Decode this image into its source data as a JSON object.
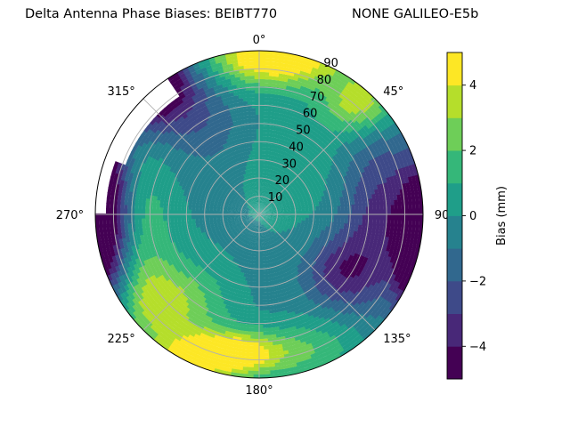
{
  "chart_data": {
    "type": "heatmap",
    "projection": "polar",
    "title_left": "Delta Antenna Phase Biases: BEIBT770",
    "title_right": "NONE GALILEO-E5b",
    "angular_axis": {
      "zero_location": "top",
      "direction": "clockwise",
      "tick_labels": [
        "0°",
        "45°",
        "90",
        "135°",
        "180°",
        "225°",
        "270°",
        "315°"
      ],
      "tick_values": [
        0,
        45,
        90,
        135,
        180,
        225,
        270,
        315
      ]
    },
    "radial_axis": {
      "quantity": "zenith angle",
      "range": [
        0,
        90
      ],
      "tick_labels": [
        "10",
        "20",
        "30",
        "40",
        "50",
        "60",
        "70",
        "80",
        "90"
      ],
      "tick_values": [
        10,
        20,
        30,
        40,
        50,
        60,
        70,
        80,
        90
      ]
    },
    "grid": true,
    "colorbar": {
      "label": "Bias (mm)",
      "range": [
        -5,
        5
      ],
      "tick_labels": [
        "4",
        "2",
        "0",
        "−2",
        "−4"
      ],
      "tick_values": [
        4,
        2,
        0,
        -2,
        -4
      ],
      "levels": [
        -5,
        -4,
        -3,
        -2,
        -1,
        0,
        1,
        2,
        3,
        4,
        5
      ],
      "colormap": "viridis",
      "colors": [
        "#440154",
        "#482878",
        "#3e4a89",
        "#31688e",
        "#26828e",
        "#1f9e89",
        "#35b779",
        "#6ece58",
        "#b5de2b",
        "#fde725"
      ]
    },
    "missing_region": {
      "azimuth_range": [
        270,
        326
      ],
      "zenith_range": [
        78,
        90
      ]
    }
  }
}
